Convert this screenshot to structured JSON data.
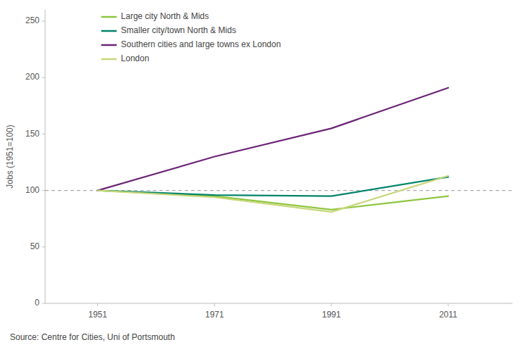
{
  "chart_data": {
    "type": "line",
    "ylabel": "Jobs (1951=100)",
    "x": [
      1951,
      1971,
      1991,
      2011
    ],
    "series": [
      {
        "name": "Large city North & Mids",
        "color": "#8dc63f",
        "values": [
          100,
          95,
          83,
          95
        ]
      },
      {
        "name": "Smaller city/town North & Mids",
        "color": "#00836a",
        "values": [
          100,
          96,
          95,
          112
        ]
      },
      {
        "name": "Southern cities and large towns ex London",
        "color": "#6b2376",
        "values": [
          100,
          130,
          155,
          191
        ]
      },
      {
        "name": "London",
        "color": "#c8d67a",
        "values": [
          100,
          94,
          81,
          113
        ]
      }
    ],
    "xlim": [
      1942,
      2022
    ],
    "xticks": [
      1951,
      1971,
      1991,
      2011
    ],
    "ylim": [
      0,
      260
    ],
    "yticks": [
      0,
      50,
      100,
      150,
      200,
      250
    ],
    "reference_line_y": 100,
    "source": "Source: Centre for Cities, Uni of Portsmouth",
    "grid": false,
    "legend": "upper left"
  }
}
